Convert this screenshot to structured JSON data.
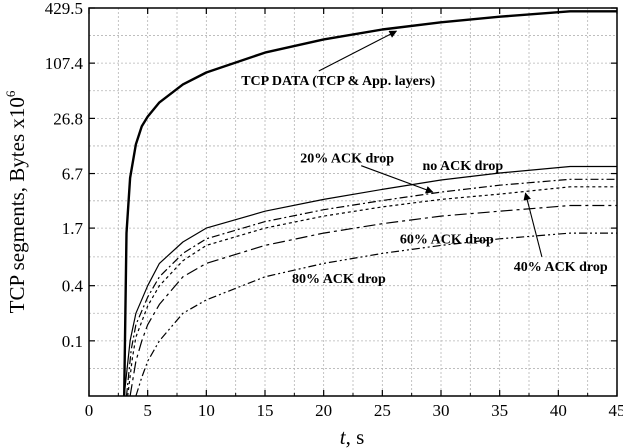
{
  "chart_data": {
    "type": "line",
    "xlabel_italic": "t",
    "xlabel_unit": ", s",
    "ylabel_text": "TCP segments, Bytes x10",
    "ylabel_exp": "6",
    "xlim": [
      0,
      45
    ],
    "ylim": [
      0.025,
      429.5
    ],
    "y_scale": "log",
    "x_ticks": [
      0,
      5,
      10,
      15,
      20,
      25,
      30,
      35,
      40,
      45
    ],
    "x_tick_labels": [
      "0",
      "5",
      "10",
      "15",
      "20",
      "25",
      "30",
      "35",
      "40",
      "45"
    ],
    "y_ticks": [
      0.1,
      0.4,
      1.7,
      6.7,
      26.8,
      107.4,
      429.5
    ],
    "y_tick_labels": [
      "0.1",
      "0.4",
      "1.7",
      "6.7",
      "26.8",
      "107.4",
      "429.5"
    ],
    "grid": true,
    "series": [
      {
        "style": "thick",
        "label": "TCP DATA (TCP & App. layers)",
        "x": [
          3.0,
          3.2,
          3.5,
          4.0,
          4.5,
          5,
          6,
          8,
          10,
          15,
          20,
          25,
          30,
          35,
          41,
          45
        ],
        "y": [
          0.025,
          1.5,
          6,
          14,
          22,
          28,
          40,
          63,
          85,
          140,
          195,
          250,
          300,
          345,
          395,
          395
        ]
      },
      {
        "style": "solid",
        "label": "no ACK drop",
        "x": [
          3.0,
          3.5,
          4,
          5,
          6,
          8,
          10,
          15,
          20,
          25,
          30,
          35,
          41,
          45
        ],
        "y": [
          0.025,
          0.1,
          0.2,
          0.4,
          0.7,
          1.2,
          1.7,
          2.6,
          3.5,
          4.5,
          5.7,
          6.8,
          8,
          8
        ]
      },
      {
        "style": "dashdot",
        "label": "20% ACK drop",
        "x": [
          3.2,
          3.6,
          4,
          5,
          6,
          8,
          10,
          15,
          20,
          25,
          30,
          35,
          41,
          45
        ],
        "y": [
          0.025,
          0.08,
          0.15,
          0.3,
          0.5,
          0.9,
          1.3,
          2.0,
          2.7,
          3.4,
          4.2,
          5.0,
          5.8,
          5.8
        ]
      },
      {
        "style": "dash",
        "label": "40% ACK drop",
        "x": [
          3.3,
          3.7,
          4,
          5,
          6,
          8,
          10,
          15,
          20,
          25,
          30,
          35,
          41,
          45
        ],
        "y": [
          0.025,
          0.065,
          0.11,
          0.24,
          0.4,
          0.75,
          1.1,
          1.7,
          2.3,
          2.9,
          3.5,
          4.0,
          4.8,
          4.8
        ]
      },
      {
        "style": "longdashdot",
        "label": "60% ACK drop",
        "x": [
          3.5,
          4,
          4.5,
          5,
          6,
          8,
          10,
          15,
          20,
          25,
          30,
          35,
          41,
          45
        ],
        "y": [
          0.025,
          0.06,
          0.1,
          0.15,
          0.25,
          0.5,
          0.7,
          1.1,
          1.5,
          1.9,
          2.3,
          2.6,
          3.0,
          3.0
        ]
      },
      {
        "style": "dashdotdot",
        "label": "80% ACK drop",
        "x": [
          4.0,
          4.5,
          5,
          6,
          8,
          10,
          15,
          20,
          25,
          30,
          35,
          41,
          45
        ],
        "y": [
          0.025,
          0.04,
          0.06,
          0.1,
          0.2,
          0.28,
          0.5,
          0.7,
          0.9,
          1.1,
          1.3,
          1.5,
          1.5
        ]
      }
    ],
    "annotations": [
      {
        "text": "TCP DATA (TCP & App. layers)",
        "at_x": 29.5,
        "at_y": 62,
        "arrow_to_x": 26.2,
        "arrow_to_y": 240
      },
      {
        "text": "20% ACK drop",
        "at_x": 26,
        "at_y": 8.8,
        "arrow_to_x": 29.3,
        "arrow_to_y": 4.2
      },
      {
        "text": "no ACK drop",
        "at_x": 35.3,
        "at_y": 7.3,
        "arrow_to_x": 0,
        "arrow_to_y": 0
      },
      {
        "text": "60% ACK drop",
        "at_x": 34.5,
        "at_y": 1.15,
        "arrow_to_x": 0,
        "arrow_to_y": 0
      },
      {
        "text": "40% ACK drop",
        "at_x": 44.2,
        "at_y": 0.58,
        "arrow_to_x": 37.2,
        "arrow_to_y": 4.1
      },
      {
        "text": "80% ACK drop",
        "at_x": 25.3,
        "at_y": 0.43,
        "arrow_to_x": 0,
        "arrow_to_y": 0
      }
    ]
  }
}
